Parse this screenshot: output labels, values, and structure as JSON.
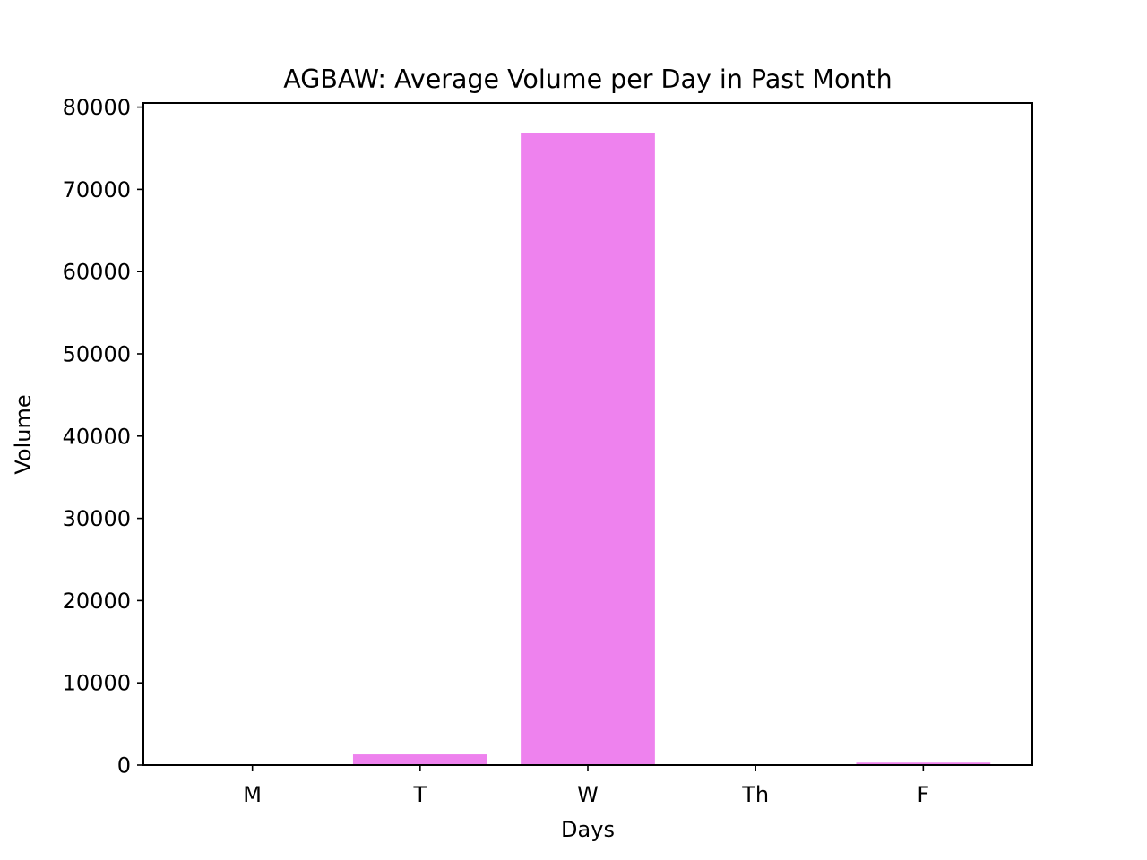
{
  "chart_data": {
    "type": "bar",
    "title": "AGBAW: Average Volume per Day in Past Month",
    "xlabel": "Days",
    "ylabel": "Volume",
    "categories": [
      "M",
      "T",
      "W",
      "Th",
      "F"
    ],
    "values": [
      0,
      1300,
      76900,
      0,
      300
    ],
    "ylim": [
      0,
      80500
    ],
    "yticks": [
      0,
      10000,
      20000,
      30000,
      40000,
      50000,
      60000,
      70000,
      80000
    ],
    "bar_color": "#ee82ee",
    "grid": false,
    "legend": "none"
  }
}
